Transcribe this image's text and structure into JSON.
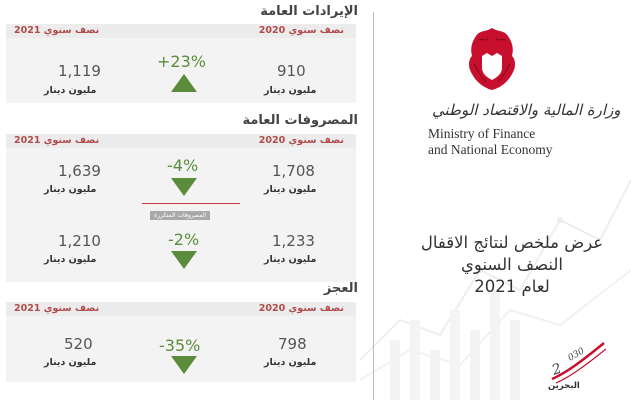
{
  "sections": {
    "revenue": {
      "title": "الإيرادات العامة",
      "period_2021": "نصف سنوي 2021",
      "period_2020": "نصف سنوي 2020",
      "value_2021": "1,119",
      "value_2020": "910",
      "unit": "مليون دينار",
      "change": "+23%",
      "direction": "up"
    },
    "expenditure": {
      "title": "المصروفات العامة",
      "period_2021": "نصف سنوي 2021",
      "period_2020": "نصف سنوي 2020",
      "total": {
        "value_2021": "1,639",
        "value_2020": "1,708",
        "change": "-4%",
        "direction": "down"
      },
      "recurrent_label": "المصروفات المتكررة",
      "recurrent": {
        "value_2021": "1,210",
        "value_2020": "1,233",
        "change": "-2%",
        "direction": "down"
      },
      "unit": "مليون دينار"
    },
    "deficit": {
      "title": "العجز",
      "period_2021": "نصف سنوي 2021",
      "period_2020": "نصف سنوي 2020",
      "value_2021": "520",
      "value_2020": "798",
      "unit": "مليون دينار",
      "change": "-35%",
      "direction": "down"
    }
  },
  "ministry": {
    "name_ar": "وزارة المالية والاقتصاد الوطني",
    "name_en_line1": "Ministry of Finance",
    "name_en_line2": "and National Economy"
  },
  "report_title": {
    "line1": "عرض ملخص لنتائج الاقفال",
    "line2": "النصف السنوي",
    "line3": "لعام 2021"
  },
  "vision_logo": {
    "year": "2030",
    "country": "البحرين"
  },
  "colors": {
    "green": "#5b8c3c",
    "period_red": "#b24a4a",
    "accent_red": "#c7393f",
    "card_bg": "#f3f3f3"
  }
}
